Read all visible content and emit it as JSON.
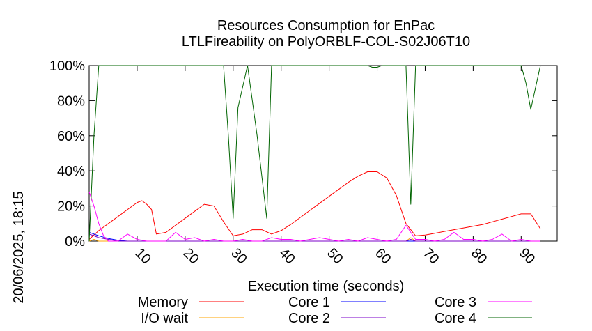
{
  "chart_data": {
    "type": "line",
    "title": "Resources Consumption for EnPac",
    "subtitle": "LTLFireability on PolyORBLF-COL-S02J06T10",
    "xlabel": "Execution time (seconds)",
    "side_label": "20/06/2025, 18:15",
    "x_range": [
      0,
      97.5
    ],
    "ylim": [
      0,
      100
    ],
    "y_ticks": [
      0,
      20,
      40,
      60,
      80,
      100
    ],
    "y_tick_labels": [
      "0%",
      "20%",
      "40%",
      "60%",
      "80%",
      "100%"
    ],
    "x_ticks": [
      10,
      20,
      30,
      40,
      50,
      60,
      70,
      80,
      90
    ],
    "x_tick_labels": [
      "10",
      "20",
      "30",
      "40",
      "50",
      "60",
      "70",
      "80",
      "90"
    ],
    "grid": false,
    "legend_position": "bottom",
    "series": [
      {
        "name": "Memory",
        "color": "#ff0000",
        "points": [
          [
            0,
            1
          ],
          [
            2,
            6
          ],
          [
            4,
            10
          ],
          [
            6,
            14
          ],
          [
            8,
            18
          ],
          [
            10,
            22
          ],
          [
            11,
            23
          ],
          [
            12,
            21
          ],
          [
            13,
            18
          ],
          [
            14,
            4
          ],
          [
            16,
            5
          ],
          [
            18,
            9
          ],
          [
            20,
            13
          ],
          [
            22,
            17
          ],
          [
            24,
            21
          ],
          [
            26,
            20
          ],
          [
            28,
            11
          ],
          [
            29,
            7
          ],
          [
            30,
            3
          ],
          [
            32,
            4
          ],
          [
            34,
            6.5
          ],
          [
            36,
            6.5
          ],
          [
            38,
            4
          ],
          [
            40,
            6
          ],
          [
            42,
            9.5
          ],
          [
            44,
            13.5
          ],
          [
            46,
            17.5
          ],
          [
            48,
            21.5
          ],
          [
            50,
            25.5
          ],
          [
            52,
            29.5
          ],
          [
            54,
            33.5
          ],
          [
            56,
            37
          ],
          [
            58,
            39.5
          ],
          [
            60,
            39.5
          ],
          [
            62,
            36
          ],
          [
            64,
            26
          ],
          [
            66,
            10
          ],
          [
            68,
            3
          ],
          [
            70,
            3.5
          ],
          [
            72,
            4.5
          ],
          [
            74,
            5.5
          ],
          [
            76,
            6.5
          ],
          [
            78,
            7.5
          ],
          [
            80,
            8.5
          ],
          [
            82,
            9.5
          ],
          [
            84,
            11
          ],
          [
            86,
            12.5
          ],
          [
            88,
            14
          ],
          [
            90,
            15.5
          ],
          [
            92,
            15.5
          ],
          [
            94,
            7
          ]
        ]
      },
      {
        "name": "I/O wait",
        "color": "#ffa500",
        "points": [
          [
            0,
            0
          ],
          [
            1,
            1
          ],
          [
            2,
            0
          ],
          [
            10,
            0
          ],
          [
            20,
            0
          ],
          [
            30,
            0
          ],
          [
            40,
            0
          ],
          [
            50,
            0
          ],
          [
            60,
            0
          ],
          [
            66,
            0
          ],
          [
            67,
            2
          ],
          [
            68,
            0
          ],
          [
            80,
            0
          ],
          [
            94,
            0
          ]
        ]
      },
      {
        "name": "Core 1",
        "color": "#0000ff",
        "points": [
          [
            0,
            5
          ],
          [
            1,
            4
          ],
          [
            2,
            3
          ],
          [
            4,
            1.5
          ],
          [
            6,
            0.5
          ],
          [
            8,
            0
          ],
          [
            20,
            0
          ],
          [
            30,
            0
          ],
          [
            40,
            0
          ],
          [
            50,
            0
          ],
          [
            60,
            0
          ],
          [
            70,
            0
          ],
          [
            80,
            0
          ],
          [
            90,
            0
          ],
          [
            94,
            0
          ]
        ]
      },
      {
        "name": "Core 2",
        "color": "#7b00c8",
        "points": [
          [
            0,
            4
          ],
          [
            1,
            3
          ],
          [
            2,
            2
          ],
          [
            4,
            1
          ],
          [
            6,
            0
          ],
          [
            20,
            0
          ],
          [
            30,
            0
          ],
          [
            40,
            0
          ],
          [
            50,
            0
          ],
          [
            60,
            0
          ],
          [
            66,
            0
          ],
          [
            67,
            1
          ],
          [
            68,
            0
          ],
          [
            80,
            0
          ],
          [
            90,
            0
          ],
          [
            94,
            0
          ]
        ]
      },
      {
        "name": "Core 3",
        "color": "#ff00ff",
        "points": [
          [
            0,
            28
          ],
          [
            1,
            20
          ],
          [
            2,
            10
          ],
          [
            3,
            3
          ],
          [
            4,
            0
          ],
          [
            6,
            0
          ],
          [
            8,
            4
          ],
          [
            10,
            1
          ],
          [
            12,
            0
          ],
          [
            14,
            0
          ],
          [
            16,
            0
          ],
          [
            18,
            5
          ],
          [
            20,
            1
          ],
          [
            22,
            2
          ],
          [
            24,
            0
          ],
          [
            26,
            1
          ],
          [
            28,
            0
          ],
          [
            30,
            0
          ],
          [
            32,
            1
          ],
          [
            34,
            0
          ],
          [
            36,
            0
          ],
          [
            38,
            2
          ],
          [
            40,
            1
          ],
          [
            42,
            1
          ],
          [
            44,
            0
          ],
          [
            46,
            1
          ],
          [
            48,
            2
          ],
          [
            50,
            1
          ],
          [
            52,
            0
          ],
          [
            54,
            1
          ],
          [
            56,
            0
          ],
          [
            58,
            2
          ],
          [
            60,
            1
          ],
          [
            62,
            0
          ],
          [
            64,
            1
          ],
          [
            66,
            9
          ],
          [
            68,
            1
          ],
          [
            70,
            1
          ],
          [
            72,
            0
          ],
          [
            74,
            1
          ],
          [
            76,
            5
          ],
          [
            78,
            1
          ],
          [
            80,
            1
          ],
          [
            82,
            0
          ],
          [
            84,
            1
          ],
          [
            86,
            4
          ],
          [
            88,
            0
          ],
          [
            90,
            1
          ],
          [
            92,
            0
          ],
          [
            94,
            0
          ]
        ]
      },
      {
        "name": "Core 4",
        "color": "#006400",
        "points": [
          [
            0,
            0
          ],
          [
            1,
            60
          ],
          [
            2,
            100
          ],
          [
            10,
            100
          ],
          [
            20,
            100
          ],
          [
            28,
            100
          ],
          [
            29,
            60
          ],
          [
            30,
            13
          ],
          [
            31,
            76
          ],
          [
            33,
            100
          ],
          [
            35,
            60
          ],
          [
            37,
            13
          ],
          [
            38,
            100
          ],
          [
            40,
            100
          ],
          [
            50,
            100
          ],
          [
            58,
            100
          ],
          [
            59,
            99
          ],
          [
            60,
            99
          ],
          [
            61,
            100
          ],
          [
            66,
            100
          ],
          [
            67,
            21
          ],
          [
            68,
            100
          ],
          [
            70,
            100
          ],
          [
            80,
            100
          ],
          [
            88,
            100
          ],
          [
            90,
            100
          ],
          [
            91,
            90
          ],
          [
            92,
            75
          ],
          [
            94,
            100
          ]
        ]
      }
    ]
  }
}
